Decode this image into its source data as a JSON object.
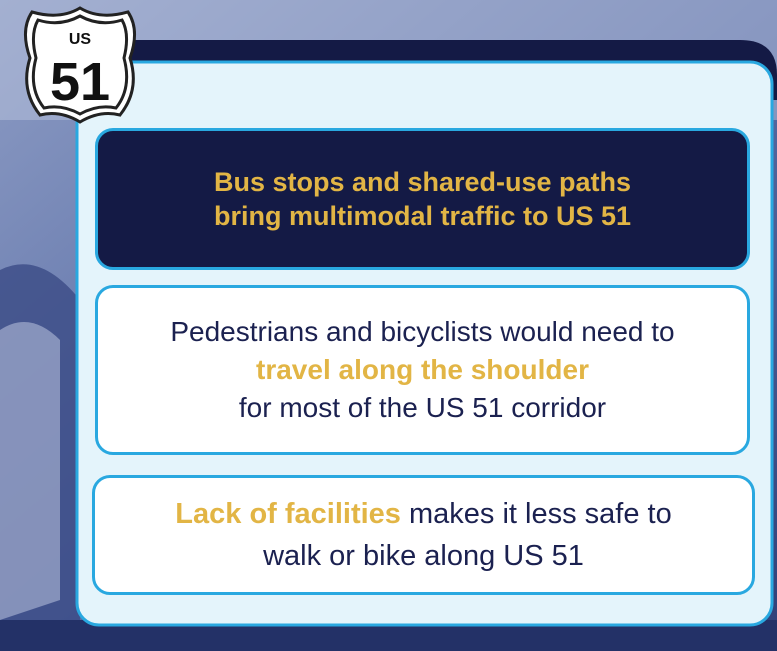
{
  "shield": {
    "top": "US",
    "number": "51"
  },
  "boxes": [
    {
      "lines": [
        "Bus stops and shared-use paths",
        "bring multimodal traffic to US 51"
      ]
    },
    {
      "lines": [
        "Pedestrians and bicyclists would need to",
        "travel along the shoulder",
        "for most of the US 51 corridor"
      ]
    },
    {
      "highlight": "Lack of facilities",
      "rest": "makes it less safe to",
      "line2": "walk or bike along US 51"
    }
  ]
}
